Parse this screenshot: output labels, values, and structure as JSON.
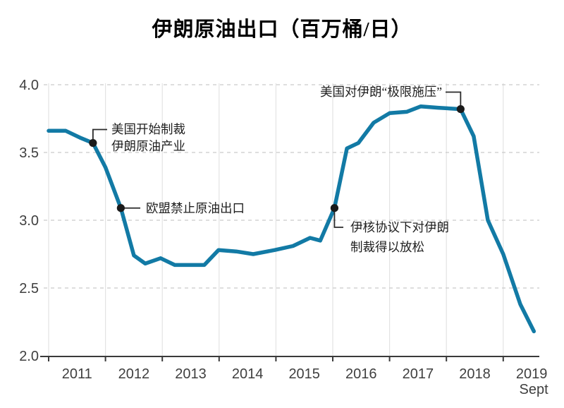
{
  "chart_data": {
    "type": "line",
    "title": "伊朗原油出口（百万桶/日）",
    "xlabel": "",
    "ylabel": "",
    "ylim": [
      2.0,
      4.0
    ],
    "y_ticks": [
      4.0,
      3.5,
      3.0,
      2.5,
      2.0
    ],
    "y_tick_labels": [
      "4.0",
      "3.5",
      "3.0",
      "2.5",
      "2.0"
    ],
    "x_ticks": [
      2011,
      2012,
      2013,
      2014,
      2015,
      2016,
      2017,
      2018,
      2019
    ],
    "x_tick_labels": [
      "2011",
      "2012",
      "2013",
      "2014",
      "2015",
      "2016",
      "2017",
      "2018",
      "2019"
    ],
    "x_end_sublabel": "Sept",
    "grid": {
      "horizontal": "dashed",
      "vertical": "solid",
      "legend": "none"
    },
    "series": [
      {
        "name": "伊朗原油出口",
        "points": [
          [
            2011.0,
            3.66
          ],
          [
            2011.3,
            3.66
          ],
          [
            2011.55,
            3.61
          ],
          [
            2011.78,
            3.57
          ],
          [
            2012.0,
            3.39
          ],
          [
            2012.27,
            3.09
          ],
          [
            2012.5,
            2.74
          ],
          [
            2012.7,
            2.68
          ],
          [
            2012.97,
            2.72
          ],
          [
            2013.22,
            2.67
          ],
          [
            2013.74,
            2.67
          ],
          [
            2013.99,
            2.78
          ],
          [
            2014.3,
            2.77
          ],
          [
            2014.6,
            2.75
          ],
          [
            2014.98,
            2.78
          ],
          [
            2015.3,
            2.81
          ],
          [
            2015.6,
            2.87
          ],
          [
            2015.78,
            2.85
          ],
          [
            2016.03,
            3.09
          ],
          [
            2016.25,
            3.53
          ],
          [
            2016.45,
            3.57
          ],
          [
            2016.72,
            3.72
          ],
          [
            2017.0,
            3.79
          ],
          [
            2017.3,
            3.8
          ],
          [
            2017.55,
            3.84
          ],
          [
            2017.85,
            3.83
          ],
          [
            2018.25,
            3.82
          ],
          [
            2018.48,
            3.62
          ],
          [
            2018.73,
            3.0
          ],
          [
            2019.0,
            2.75
          ],
          [
            2019.3,
            2.38
          ],
          [
            2019.54,
            2.18
          ]
        ]
      }
    ],
    "annotations": [
      {
        "x": 2011.78,
        "y": 3.57,
        "lines": [
          "美国开始制裁",
          "伊朗原油产业"
        ]
      },
      {
        "x": 2012.27,
        "y": 3.09,
        "lines": [
          "欧盟禁止原油出口"
        ]
      },
      {
        "x": 2016.03,
        "y": 3.09,
        "lines": [
          "伊核协议下对伊朗",
          "制裁得以放松"
        ]
      },
      {
        "x": 2018.25,
        "y": 3.82,
        "lines": [
          "美国对伊朗“极限施压”"
        ]
      }
    ],
    "colors": {
      "line": "#127aa5",
      "marker": "#1a1a1a",
      "connector": "#2a2a2a",
      "axis": "#3a3a3a",
      "grid_horizontal": "#c9c9c9",
      "grid_vertical": "#e3e3e3",
      "tick_text": "#3f3f3f",
      "annotation_text": "#1f1f1f",
      "title_text": "#000000",
      "background": "#ffffff"
    }
  }
}
